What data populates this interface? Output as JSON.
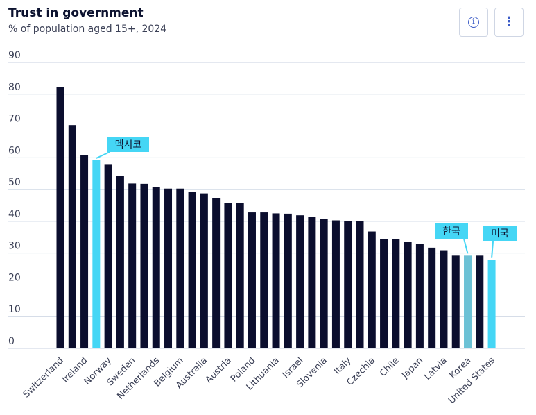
{
  "header": {
    "title": "Trust in government",
    "subtitle": "% of population aged 15+, 2024",
    "info_icon": "info-icon",
    "menu_icon": "more-vertical-icon"
  },
  "chart_data": {
    "type": "bar",
    "title": "Trust in government",
    "subtitle": "% of population aged 15+, 2024",
    "ylim": [
      0,
      90
    ],
    "yticks": [
      0,
      10,
      20,
      30,
      40,
      50,
      60,
      70,
      80,
      90
    ],
    "grid": true,
    "colors": {
      "default": "#0b0e2e",
      "highlight": "#45d6f5",
      "korea": "#6cc1d5",
      "gridline": "#c8d2e0"
    },
    "categories": [
      "Switzerland",
      "",
      "Ireland",
      "Mexico",
      "Norway",
      "",
      "Sweden",
      "",
      "Netherlands",
      "",
      "Belgium",
      "",
      "Australia",
      "",
      "Austria",
      "",
      "Poland",
      "",
      "Lithuania",
      "",
      "Israel",
      "",
      "Slovenia",
      "",
      "Italy",
      "",
      "Czechia",
      "",
      "Chile",
      "",
      "Japan",
      "",
      "Latvia",
      "",
      "Korea",
      "",
      "United States"
    ],
    "values": [
      82.3,
      70.3,
      60.8,
      59.2,
      57.8,
      54.2,
      51.9,
      51.8,
      50.8,
      50.3,
      50.3,
      49.2,
      48.8,
      47.4,
      45.8,
      45.7,
      42.8,
      42.8,
      42.5,
      42.4,
      41.9,
      41.3,
      40.7,
      40.3,
      40.0,
      40.0,
      36.8,
      34.3,
      34.3,
      33.5,
      32.9,
      31.7,
      30.9,
      29.2,
      29.2,
      29.2,
      27.8
    ],
    "highlight": {
      "3": "highlight",
      "34": "korea",
      "36": "highlight"
    },
    "labels_shown": [
      0,
      2,
      4,
      6,
      8,
      10,
      12,
      14,
      16,
      18,
      20,
      22,
      24,
      26,
      28,
      30,
      32,
      34,
      36
    ],
    "callouts": [
      {
        "text": "멕시코",
        "index": 3
      },
      {
        "text": "한국",
        "index": 34
      },
      {
        "text": "미국",
        "index": 36
      }
    ]
  }
}
